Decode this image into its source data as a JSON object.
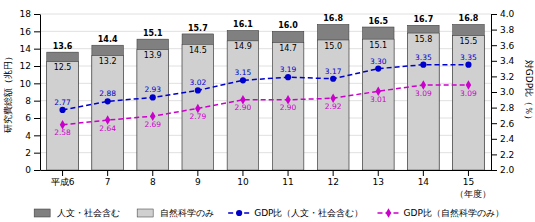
{
  "chart_data": {
    "type": "bar",
    "categories": [
      "平成6",
      "7",
      "8",
      "9",
      "10",
      "11",
      "12",
      "13",
      "14",
      "15"
    ],
    "xlabel": "（年度）",
    "ylabel": "研究費総額（兆円）",
    "y2label": "対GDP比（％）",
    "ylim": [
      0,
      18
    ],
    "yticks": [
      0,
      2,
      4,
      6,
      8,
      10,
      12,
      14,
      16,
      18
    ],
    "y2lim": [
      2.0,
      4.0
    ],
    "y2ticks": [
      {
        "value": 2.0,
        "label": "2.0"
      },
      2.2,
      2.4,
      2.6,
      2.8,
      {
        "value": 3.0,
        "label": "3.0"
      },
      3.2,
      3.4,
      3.6,
      3.8,
      {
        "value": 4.0,
        "label": "4.0"
      }
    ],
    "grid": true,
    "legend": "bottom",
    "data_labels": true,
    "series": [
      {
        "name": "人文・社会含む",
        "type": "bar",
        "color": "#808080",
        "values": [
          13.6,
          14.4,
          15.1,
          15.7,
          16.1,
          16.0,
          16.8,
          16.5,
          16.7,
          16.8
        ],
        "value_labels": [
          "13.6",
          "14.4",
          "15.1",
          "15.7",
          "16.1",
          "16.0",
          "16.8",
          "16.5",
          "16.7",
          "16.8"
        ]
      },
      {
        "name": "自然科学のみ",
        "type": "bar",
        "color": "#d0d0d0",
        "values": [
          12.5,
          13.2,
          13.9,
          14.5,
          14.9,
          14.7,
          15.0,
          15.1,
          15.8,
          15.5
        ],
        "value_labels": [
          "12.5",
          "13.2",
          "13.9",
          "14.5",
          "14.9",
          "14.7",
          "15.0",
          "15.1",
          "15.8",
          "15.5"
        ]
      },
      {
        "name": "GDP比（人文・社会含む）",
        "type": "line",
        "axis": "y2",
        "color": "#0000cc",
        "marker": "circle",
        "line_style": "dashed",
        "values": [
          2.77,
          2.88,
          2.93,
          3.02,
          3.15,
          3.19,
          3.17,
          3.3,
          3.35,
          3.35
        ],
        "value_labels": [
          "2.77",
          "2.88",
          "2.93",
          "3.02",
          "3.15",
          "3.19",
          "3.17",
          "3.30",
          "3.35",
          "3.35"
        ]
      },
      {
        "name": "GDP比（自然科学のみ）",
        "type": "line",
        "axis": "y2",
        "color": "#cc00cc",
        "marker": "diamond",
        "line_style": "dashed",
        "values": [
          2.58,
          2.64,
          2.69,
          2.79,
          2.9,
          2.9,
          2.92,
          3.01,
          3.09,
          3.09
        ],
        "value_labels": [
          "2.58",
          "2.64",
          "2.69",
          "2.79",
          "2.90",
          "2.90",
          "2.92",
          "3.01",
          "3.09",
          "3.09"
        ]
      }
    ]
  }
}
